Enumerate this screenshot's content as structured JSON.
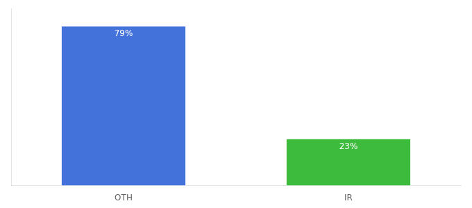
{
  "chart_data": {
    "type": "bar",
    "categories": [
      "OTH",
      "IR"
    ],
    "values": [
      79,
      23
    ],
    "colors": [
      "#4472db",
      "#3dbb3d"
    ],
    "ylim": [
      0,
      88
    ],
    "data_labels": true,
    "value_labels": [
      "79%",
      "23%"
    ],
    "grid": false,
    "tick_labels": "x"
  }
}
